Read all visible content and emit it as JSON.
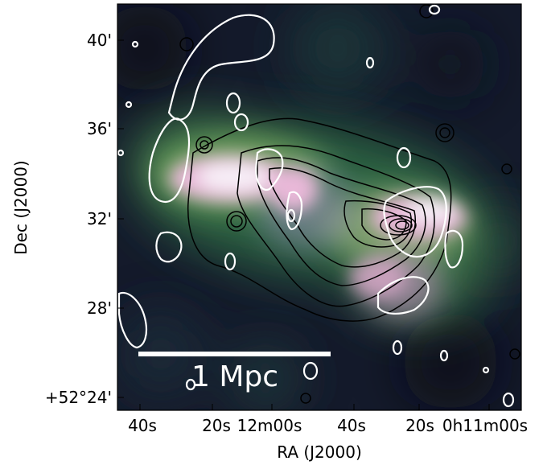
{
  "axes": {
    "xlabel": "RA (J2000)",
    "ylabel": "Dec (J2000)",
    "xticks": [
      "40s",
      "20s",
      "12m00s",
      "40s",
      "20s",
      "0h11m00s"
    ],
    "yticks": [
      "40'",
      "36'",
      "32'",
      "28'",
      "+52°24'"
    ]
  },
  "scale_bar": {
    "label": "1 Mpc"
  },
  "colors": {
    "background": "#111827",
    "diffuse_emission": [
      "#2c5a3e",
      "#6aa35a",
      "#c58aa8",
      "#e8cfe6",
      "#f4eef8"
    ],
    "contours_radio": "#ffffff",
    "contours_xray": "#000000"
  }
}
